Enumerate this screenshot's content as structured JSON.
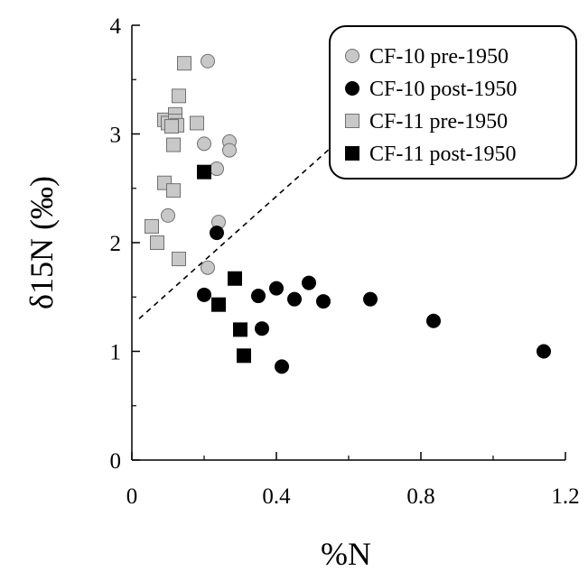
{
  "chart_data": {
    "type": "scatter",
    "title": "",
    "xlabel": "%N",
    "ylabel": "δ15N (‰)",
    "xlim": [
      0,
      1.2
    ],
    "ylim": [
      0,
      4
    ],
    "x_ticks": [
      "0",
      "0.4",
      "0.8",
      "1.2"
    ],
    "y_ticks": [
      "0",
      "1",
      "2",
      "3",
      "4"
    ],
    "grid": false,
    "legend_position": "top-right",
    "trend_line": {
      "style": "dashed",
      "points": [
        [
          0.02,
          1.3
        ],
        [
          0.57,
          2.93
        ]
      ]
    },
    "series": [
      {
        "name": "CF-10 pre-1950",
        "marker": "circle",
        "fill": "#c8c8c8",
        "x": [
          0.21,
          0.2,
          0.27,
          0.27,
          0.235,
          0.1,
          0.24,
          0.21
        ],
        "y": [
          3.67,
          2.91,
          2.93,
          2.85,
          2.68,
          2.25,
          2.19,
          1.77
        ]
      },
      {
        "name": "CF-10 post-1950",
        "marker": "circle",
        "fill": "#000000",
        "x": [
          0.235,
          0.2,
          0.35,
          0.4,
          0.45,
          0.49,
          0.53,
          0.66,
          0.36,
          0.415,
          0.835,
          1.14
        ],
        "y": [
          2.09,
          1.52,
          1.51,
          1.58,
          1.48,
          1.63,
          1.46,
          1.48,
          1.21,
          0.86,
          1.28,
          1.0
        ]
      },
      {
        "name": "CF-11 pre-1950",
        "marker": "square",
        "fill": "#c8c8c8",
        "x": [
          0.145,
          0.13,
          0.09,
          0.12,
          0.1,
          0.12,
          0.125,
          0.11,
          0.18,
          0.115,
          0.09,
          0.115,
          0.055,
          0.07,
          0.13
        ],
        "y": [
          3.65,
          3.35,
          3.13,
          3.18,
          3.1,
          3.12,
          3.08,
          3.07,
          3.1,
          2.9,
          2.55,
          2.48,
          2.15,
          2.0,
          1.85
        ]
      },
      {
        "name": "CF-11 post-1950",
        "marker": "square",
        "fill": "#000000",
        "x": [
          0.2,
          0.285,
          0.24,
          0.3,
          0.31
        ],
        "y": [
          2.65,
          1.67,
          1.43,
          1.2,
          0.96
        ]
      }
    ]
  }
}
